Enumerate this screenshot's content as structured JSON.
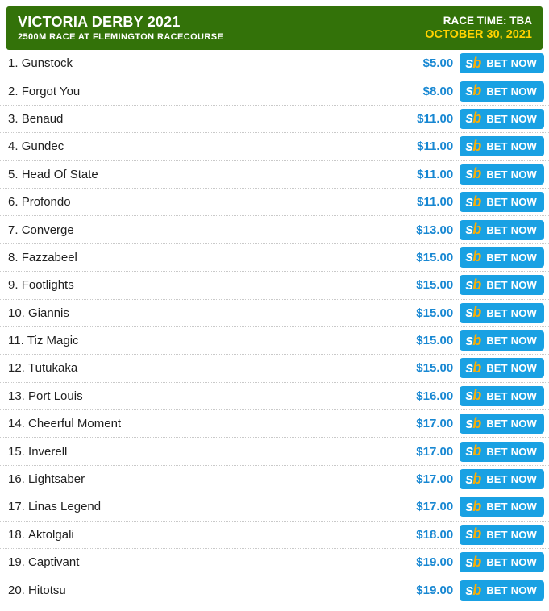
{
  "header": {
    "title": "VICTORIA DERBY 2021",
    "subtitle": "2500M RACE AT FLEMINGTON RACECOURSE",
    "race_time": "RACE TIME: TBA",
    "race_date": "OCTOBER 30, 2021"
  },
  "bet_button": {
    "logo_s": "s",
    "logo_b": "b",
    "label": "BET NOW",
    "logo_name": "sportsbet-logo"
  },
  "colors": {
    "header_green": "#337209",
    "date_yellow": "#ffd200",
    "odds_blue": "#1787d2",
    "button_blue": "#19a1e3",
    "logo_gold": "#f5af0d",
    "row_text": "#212121",
    "separator_gray": "#c9c9c9"
  },
  "runners": [
    {
      "number": "1.",
      "name": "Gunstock",
      "odds": "$5.00"
    },
    {
      "number": "2.",
      "name": "Forgot You",
      "odds": "$8.00"
    },
    {
      "number": "3.",
      "name": "Benaud",
      "odds": "$11.00"
    },
    {
      "number": "4.",
      "name": "Gundec",
      "odds": "$11.00"
    },
    {
      "number": "5.",
      "name": "Head Of State",
      "odds": "$11.00"
    },
    {
      "number": "6.",
      "name": "Profondo",
      "odds": "$11.00"
    },
    {
      "number": "7.",
      "name": "Converge",
      "odds": "$13.00"
    },
    {
      "number": "8.",
      "name": "Fazzabeel",
      "odds": "$15.00"
    },
    {
      "number": "9.",
      "name": "Footlights",
      "odds": "$15.00"
    },
    {
      "number": "10.",
      "name": "Giannis",
      "odds": "$15.00"
    },
    {
      "number": "11.",
      "name": "Tiz Magic",
      "odds": "$15.00"
    },
    {
      "number": "12.",
      "name": "Tutukaka",
      "odds": "$15.00"
    },
    {
      "number": "13.",
      "name": "Port Louis",
      "odds": "$16.00"
    },
    {
      "number": "14.",
      "name": "Cheerful Moment",
      "odds": "$17.00"
    },
    {
      "number": "15.",
      "name": "Inverell",
      "odds": "$17.00"
    },
    {
      "number": "16.",
      "name": "Lightsaber",
      "odds": "$17.00"
    },
    {
      "number": "17.",
      "name": "Linas Legend",
      "odds": "$17.00"
    },
    {
      "number": "18.",
      "name": "Aktolgali",
      "odds": "$18.00"
    },
    {
      "number": "19.",
      "name": "Captivant",
      "odds": "$19.00"
    },
    {
      "number": "20.",
      "name": "Hitotsu",
      "odds": "$19.00"
    }
  ]
}
